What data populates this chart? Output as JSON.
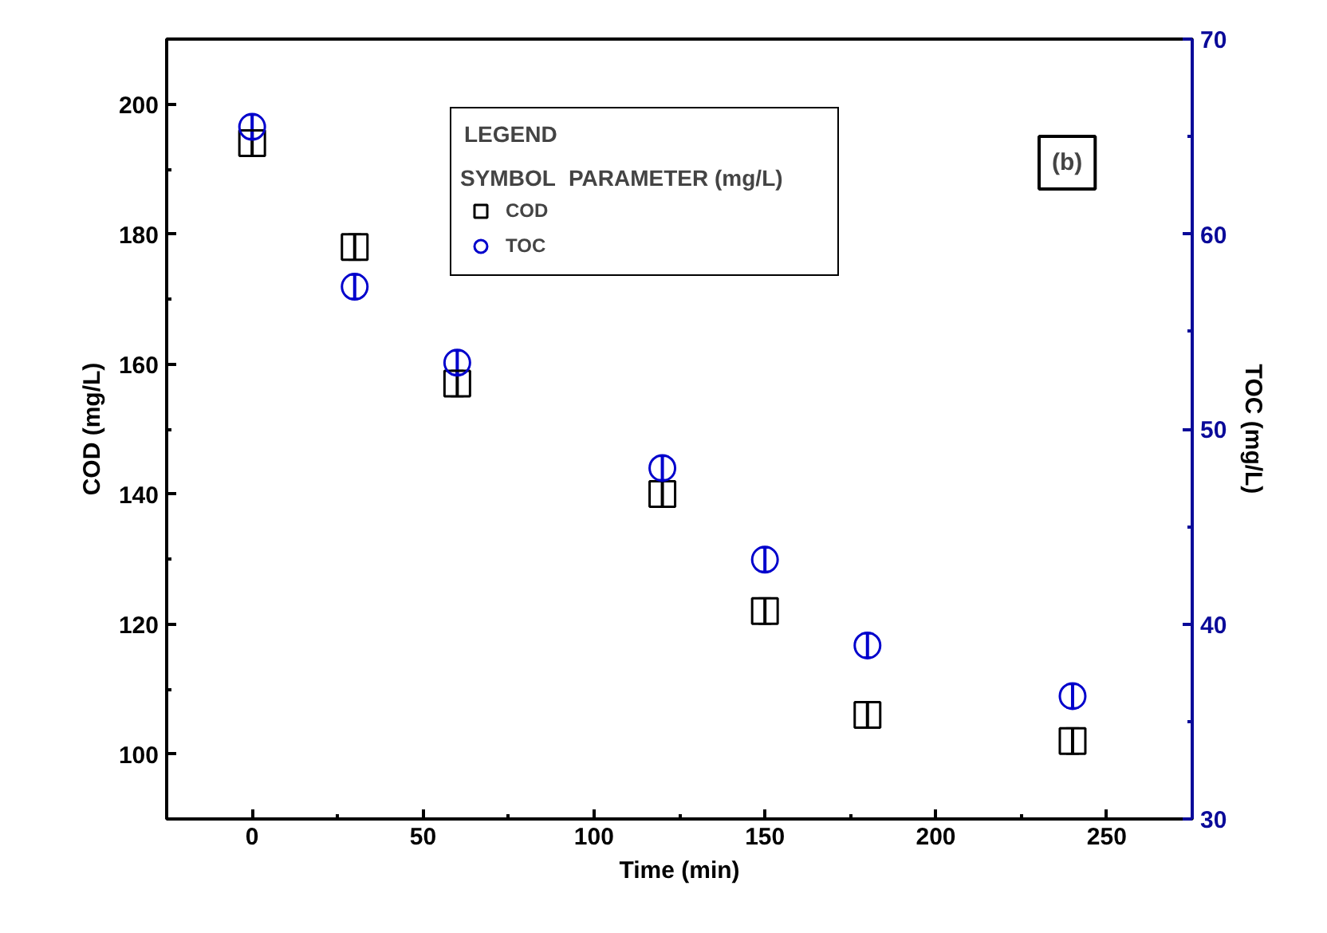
{
  "chart_data": {
    "type": "scatter",
    "xlabel": "Time (min)",
    "ylabel": "COD (mg/L)",
    "y2label": "TOC (mg/L)",
    "legend_title": "LEGEND",
    "annotations": [
      "SYMBOL",
      "PARAMETER (mg/L)",
      "(b)"
    ],
    "x": [
      0,
      30,
      60,
      120,
      150,
      180,
      240
    ],
    "series": [
      {
        "name": "COD",
        "color": "#000000",
        "marker": "square",
        "values": [
          194,
          178,
          157,
          140,
          122,
          106,
          102
        ],
        "errors": [
          2,
          2,
          2,
          2,
          2,
          2,
          2
        ]
      },
      {
        "name": "TOC",
        "color": "#0000cc",
        "marker": "circle",
        "axis": "y2",
        "values": [
          65.5,
          57.3,
          53.4,
          48.0,
          43.3,
          38.9,
          36.3
        ],
        "errors": [
          0.6,
          0.6,
          0.6,
          0.6,
          0.6,
          0.6,
          0.6
        ]
      }
    ],
    "xlim": [
      -25,
      275
    ],
    "xticks": [
      0,
      50,
      100,
      150,
      200,
      250
    ],
    "ylim": [
      90,
      210
    ],
    "yticks": [
      100,
      120,
      140,
      160,
      180,
      200
    ],
    "y2lim": [
      30,
      70
    ],
    "y2ticks": [
      30,
      40,
      50,
      60,
      70
    ],
    "grid": false,
    "legend": "top"
  }
}
